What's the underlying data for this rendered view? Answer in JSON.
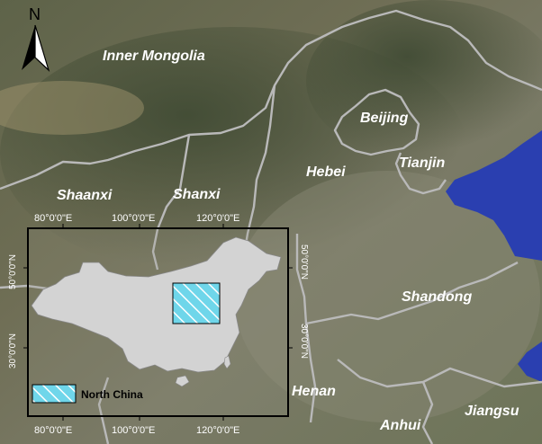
{
  "map": {
    "regions": [
      {
        "name": "Inner Mongolia"
      },
      {
        "name": "Beijing"
      },
      {
        "name": "Tianjin"
      },
      {
        "name": "Hebei"
      },
      {
        "name": "Shaanxi"
      },
      {
        "name": "Shanxi"
      },
      {
        "name": "Shandong"
      },
      {
        "name": "Henan"
      },
      {
        "name": "Anhui"
      },
      {
        "name": "Jiangsu"
      }
    ],
    "north_arrow": {
      "letter": "N"
    },
    "inset": {
      "top_ticks": [
        "80°0'0\"E",
        "100°0'0\"E",
        "120°0'0\"E"
      ],
      "bottom_ticks": [
        "80°0'0\"E",
        "100°0'0\"E",
        "120°0'0\"E"
      ],
      "left_ticks": [
        "50°0'0\"N",
        "30°0'0\"N"
      ],
      "right_ticks": [
        "50°0'0\"N",
        "30°0'0\"N"
      ],
      "legend_label": "North China"
    },
    "colors": {
      "study_area": "#6fd6ea",
      "china_fill": "#d3d3d3",
      "sea": "#2a3fb0"
    }
  }
}
